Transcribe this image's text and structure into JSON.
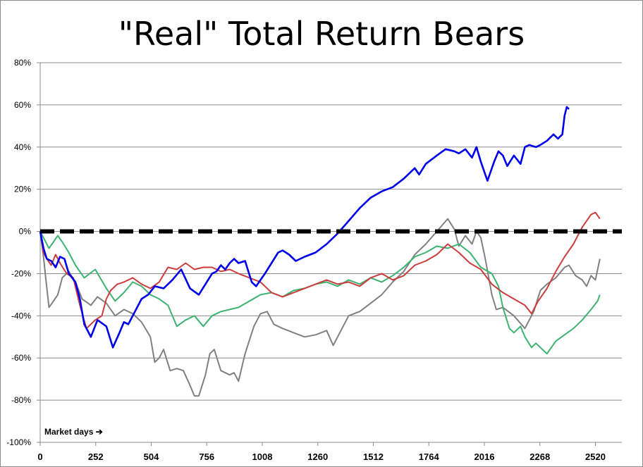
{
  "chart_data": {
    "type": "line",
    "title": "\"Real\" Total Return Bears",
    "xlabel": "",
    "ylabel": "",
    "annotation": "Market days ➔",
    "xlim": [
      0,
      2640
    ],
    "ylim": [
      -100,
      80
    ],
    "x_ticks": [
      0,
      252,
      504,
      756,
      1008,
      1260,
      1512,
      1764,
      2016,
      2268,
      2520
    ],
    "y_ticks": [
      -100,
      -80,
      -60,
      -40,
      -20,
      0,
      20,
      40,
      60,
      80
    ],
    "y_tick_labels": [
      "-100%",
      "-80%",
      "-60%",
      "-40%",
      "-20%",
      "0%",
      "20%",
      "40%",
      "60%",
      "80%"
    ],
    "grid": "horizontal",
    "legend": "none",
    "reference_line": {
      "y": 0,
      "style": "dashed",
      "color": "#000000"
    },
    "series": [
      {
        "color": "#808080",
        "x": [
          0,
          15,
          25,
          40,
          60,
          80,
          100,
          130,
          160,
          190,
          230,
          260,
          300,
          340,
          380,
          420,
          460,
          500,
          520,
          540,
          560,
          590,
          620,
          650,
          680,
          700,
          720,
          750,
          770,
          790,
          820,
          860,
          880,
          900,
          930,
          970,
          1000,
          1030,
          1060,
          1100,
          1150,
          1200,
          1250,
          1300,
          1330,
          1360,
          1400,
          1450,
          1500,
          1550,
          1600,
          1650,
          1700,
          1750,
          1800,
          1850,
          1880,
          1900,
          1930,
          1960,
          1980,
          2000,
          2020,
          2050,
          2070,
          2100,
          2150,
          2200,
          2240,
          2270,
          2300,
          2340,
          2380,
          2400,
          2430,
          2460,
          2480,
          2500,
          2520,
          2540
        ],
        "values": [
          0,
          -12,
          -22,
          -36,
          -33,
          -30,
          -22,
          -19,
          -24,
          -32,
          -35,
          -31,
          -34,
          -40,
          -37,
          -39,
          -43,
          -50,
          -62,
          -60,
          -56,
          -66,
          -65,
          -66,
          -73,
          -78,
          -78,
          -68,
          -58,
          -56,
          -66,
          -68,
          -67,
          -71,
          -58,
          -45,
          -39,
          -38,
          -44,
          -46,
          -48,
          -50,
          -49,
          -47,
          -54,
          -48,
          -40,
          -38,
          -34,
          -30,
          -24,
          -19,
          -11,
          -6,
          0,
          6,
          1,
          -7,
          -2,
          -6,
          0,
          -3,
          -13,
          -30,
          -37,
          -36,
          -40,
          -46,
          -38,
          -28,
          -25,
          -22,
          -17,
          -16,
          -21,
          -23,
          -26,
          -21,
          -23,
          -13
        ]
      },
      {
        "color": "#3cb371",
        "x": [
          0,
          20,
          40,
          60,
          80,
          100,
          130,
          160,
          200,
          250,
          300,
          340,
          380,
          420,
          460,
          500,
          540,
          580,
          620,
          660,
          700,
          740,
          780,
          820,
          860,
          900,
          950,
          1000,
          1050,
          1100,
          1150,
          1200,
          1250,
          1300,
          1350,
          1400,
          1450,
          1500,
          1550,
          1600,
          1650,
          1700,
          1750,
          1800,
          1850,
          1900,
          1950,
          2000,
          2050,
          2080,
          2100,
          2130,
          2150,
          2180,
          2200,
          2230,
          2250,
          2270,
          2300,
          2340,
          2380,
          2420,
          2460,
          2500,
          2530,
          2540
        ],
        "values": [
          0,
          -4,
          -8,
          -5,
          -2,
          -5,
          -10,
          -16,
          -22,
          -18,
          -27,
          -33,
          -29,
          -24,
          -26,
          -30,
          -32,
          -35,
          -45,
          -42,
          -40,
          -45,
          -40,
          -38,
          -37,
          -36,
          -33,
          -30,
          -29,
          -31,
          -28,
          -27,
          -25,
          -24,
          -26,
          -23,
          -25,
          -22,
          -24,
          -21,
          -17,
          -12,
          -10,
          -7,
          -8,
          -6,
          -10,
          -17,
          -20,
          -26,
          -36,
          -46,
          -48,
          -45,
          -50,
          -55,
          -53,
          -55,
          -58,
          -52,
          -49,
          -46,
          -42,
          -37,
          -33,
          -30
        ]
      },
      {
        "color": "#cd3c3c",
        "x": [
          0,
          15,
          30,
          50,
          70,
          90,
          120,
          150,
          180,
          210,
          250,
          280,
          300,
          320,
          350,
          380,
          420,
          460,
          500,
          540,
          580,
          620,
          660,
          700,
          740,
          780,
          820,
          860,
          900,
          950,
          1000,
          1050,
          1100,
          1150,
          1200,
          1250,
          1300,
          1350,
          1400,
          1450,
          1500,
          1550,
          1600,
          1650,
          1700,
          1750,
          1800,
          1850,
          1900,
          1950,
          2000,
          2050,
          2100,
          2150,
          2200,
          2230,
          2260,
          2300,
          2340,
          2380,
          2420,
          2460,
          2500,
          2520,
          2540
        ],
        "values": [
          0,
          -10,
          -13,
          -16,
          -11,
          -15,
          -20,
          -22,
          -35,
          -46,
          -42,
          -40,
          -32,
          -28,
          -25,
          -24,
          -22,
          -25,
          -27,
          -24,
          -17,
          -18,
          -15,
          -18,
          -17,
          -17,
          -19,
          -18,
          -20,
          -22,
          -24,
          -29,
          -31,
          -29,
          -27,
          -25,
          -23,
          -25,
          -24,
          -26,
          -22,
          -20,
          -23,
          -21,
          -16,
          -14,
          -11,
          -6,
          -10,
          -15,
          -18,
          -25,
          -29,
          -32,
          -35,
          -39,
          -33,
          -27,
          -19,
          -12,
          -6,
          2,
          8,
          9,
          6
        ]
      },
      {
        "color": "#0000ee",
        "x": [
          0,
          15,
          30,
          50,
          70,
          90,
          110,
          130,
          160,
          180,
          200,
          230,
          260,
          300,
          330,
          360,
          380,
          400,
          430,
          460,
          490,
          520,
          560,
          600,
          640,
          680,
          720,
          750,
          780,
          800,
          820,
          840,
          860,
          880,
          900,
          930,
          960,
          980,
          1000,
          1020,
          1050,
          1080,
          1100,
          1130,
          1160,
          1200,
          1250,
          1300,
          1350,
          1400,
          1450,
          1500,
          1550,
          1600,
          1650,
          1700,
          1720,
          1750,
          1800,
          1840,
          1880,
          1900,
          1930,
          1960,
          1980,
          2000,
          2030,
          2060,
          2080,
          2100,
          2120,
          2150,
          2180,
          2200,
          2220,
          2250,
          2270,
          2300,
          2330,
          2350,
          2370,
          2380,
          2390,
          2400
        ],
        "values": [
          0,
          -8,
          -13,
          -14,
          -17,
          -12,
          -13,
          -20,
          -24,
          -32,
          -44,
          -50,
          -42,
          -45,
          -55,
          -48,
          -43,
          -44,
          -38,
          -32,
          -30,
          -26,
          -27,
          -23,
          -18,
          -27,
          -30,
          -25,
          -20,
          -19,
          -16,
          -18,
          -15,
          -13,
          -15,
          -14,
          -24,
          -26,
          -23,
          -20,
          -15,
          -10,
          -9,
          -11,
          -14,
          -12,
          -10,
          -6,
          -1,
          5,
          11,
          16,
          19,
          21,
          25,
          30,
          27,
          32,
          36,
          39,
          38,
          37,
          39,
          35,
          40,
          33,
          24,
          33,
          38,
          36,
          31,
          36,
          32,
          40,
          41,
          40,
          41,
          43,
          46,
          44,
          46,
          55,
          59,
          58
        ]
      }
    ]
  }
}
